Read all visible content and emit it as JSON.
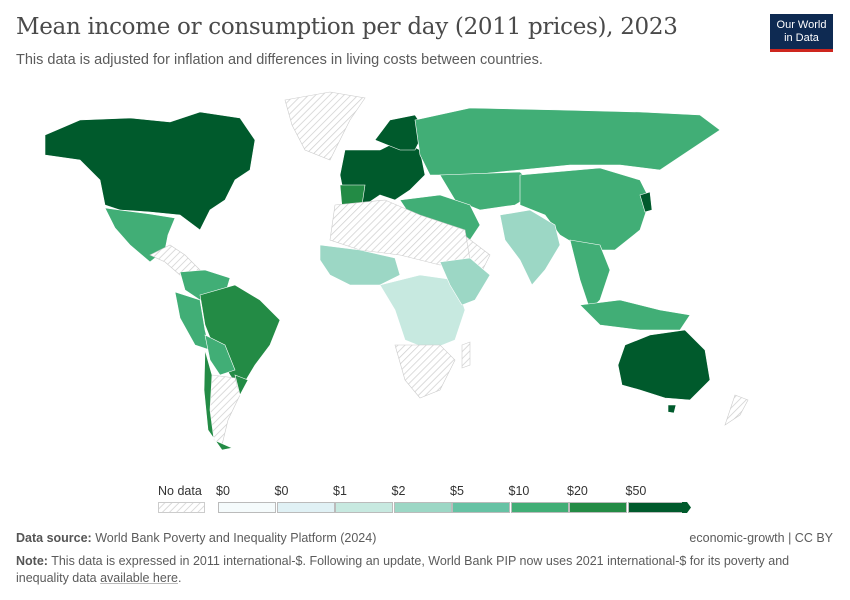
{
  "header": {
    "title": "Mean income or consumption per day (2011 prices), 2023",
    "subtitle": "This data is adjusted for inflation and differences in living costs between countries."
  },
  "logo": {
    "line1": "Our World",
    "line2": "in Data"
  },
  "legend": {
    "no_data_label": "No data",
    "bins": [
      "$0",
      "$0",
      "$1",
      "$2",
      "$5",
      "$10",
      "$20",
      "$50"
    ],
    "colors": [
      "#f5fbfc",
      "#e0f1f5",
      "#c7e9e0",
      "#9cd7c5",
      "#66c2a4",
      "#41ae76",
      "#238b45",
      "#005a2c"
    ]
  },
  "footer": {
    "source_label": "Data source:",
    "source": "World Bank Poverty and Inequality Platform (2024)",
    "license": "economic-growth | CC BY",
    "note_label": "Note:",
    "note": "This data is expressed in 2011 international-$. Following an update, World Bank PIP now uses 2021 international-$ for its poverty and inequality data",
    "note_link": "available here",
    "note_end": "."
  }
}
